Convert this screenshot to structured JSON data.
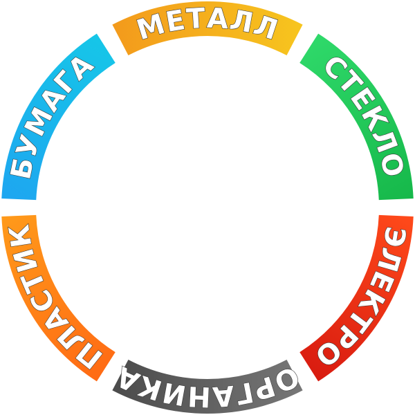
{
  "segments": [
    {
      "label": "МЕТАЛЛ",
      "colors": [
        "#f39a1c",
        "#f7c51e"
      ]
    },
    {
      "label": "СТЕКЛО",
      "colors": [
        "#2fd96a",
        "#16b84a"
      ]
    },
    {
      "label": "ЭЛЕКТРО",
      "colors": [
        "#ff4a1a",
        "#d81b10"
      ]
    },
    {
      "label": "ОРГАНИКА",
      "colors": [
        "#777777",
        "#4b4b4b"
      ]
    },
    {
      "label": "ПЛАСТИК",
      "colors": [
        "#ff6a14",
        "#ff9a1a"
      ]
    },
    {
      "label": "БУМАГА",
      "colors": [
        "#1ea6f0",
        "#16c6e8"
      ]
    }
  ]
}
